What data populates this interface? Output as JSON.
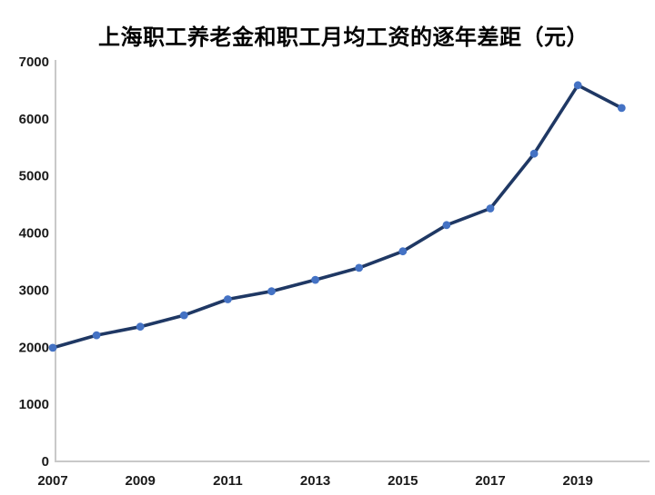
{
  "page": {
    "background_color": "#ffffff"
  },
  "chart_data": {
    "type": "line",
    "title": "上海职工养老金和职工月均工资的逐年差距（元）",
    "xlabel": "",
    "ylabel": "",
    "x": [
      2007,
      2008,
      2009,
      2010,
      2011,
      2012,
      2013,
      2014,
      2015,
      2016,
      2017,
      2018,
      2019,
      2020
    ],
    "values": [
      1990,
      2210,
      2360,
      2560,
      2840,
      2980,
      3180,
      3390,
      3680,
      4140,
      4430,
      5390,
      6590,
      6190
    ],
    "xticks": [
      2007,
      2009,
      2011,
      2013,
      2015,
      2017,
      2019
    ],
    "ylim": [
      0,
      7000
    ],
    "ytick_step": 1000,
    "grid": false,
    "legend": "none",
    "line_color": "#1f3864",
    "marker_color": "#4472c4",
    "axis_color": "#c9c9c9",
    "tick_label_color": "#1a1a1a",
    "title_color": "#000000"
  }
}
